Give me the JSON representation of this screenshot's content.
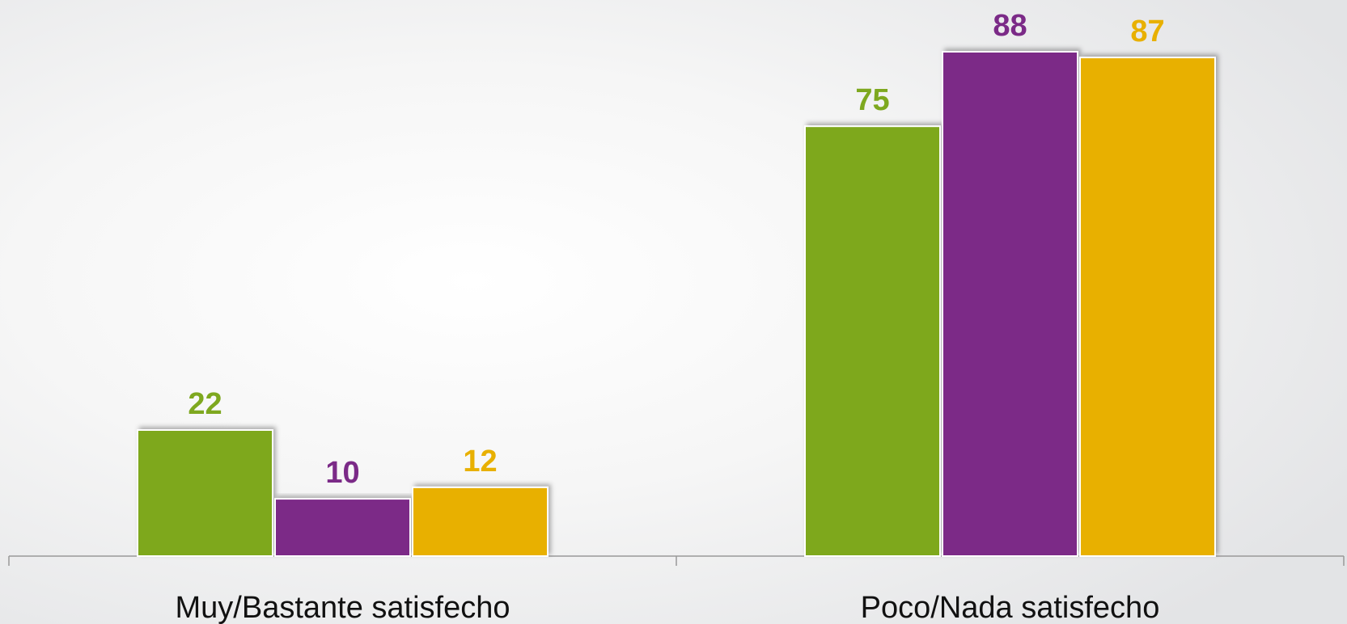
{
  "chart_data": {
    "type": "bar",
    "categories": [
      "Muy/Bastante satisfecho",
      "Poco/Nada satisfecho"
    ],
    "series": [
      {
        "color": "#7ea81f",
        "values": [
          22,
          75
        ]
      },
      {
        "color": "#7b2a87",
        "values": [
          10,
          88
        ]
      },
      {
        "color": "#e8b000",
        "values": [
          12,
          87
        ]
      }
    ]
  }
}
